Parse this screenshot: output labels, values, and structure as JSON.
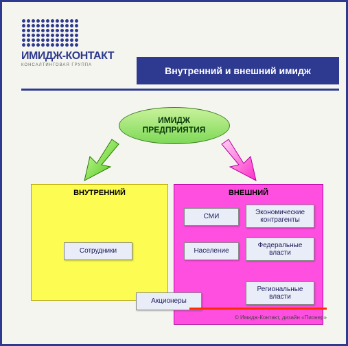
{
  "logo": {
    "name": "ИМИДЖ-КОНТАКТ",
    "sub": "КОНСАЛТИНГОВАЯ ГРУППА",
    "dot_color": "#2e3a8f",
    "rows": 6,
    "cols": 12
  },
  "title": "Внутренний и внешний имидж",
  "colors": {
    "brand": "#2e3a8f",
    "inner_bg": "#fcfc52",
    "outer_bg": "#ff4fe0",
    "node_bg": "#e9edf7",
    "accent_line": "#ff2a00"
  },
  "diagram": {
    "root": {
      "line1": "ИМИДЖ",
      "line2": "ПРЕДПРИЯТИЯ"
    },
    "inner": {
      "title": "ВНУТРЕННИЙ"
    },
    "outer": {
      "title": "ВНЕШНИЙ"
    },
    "nodes": {
      "employees": "Сотрудники",
      "shareholders": "Акционеры",
      "media": "СМИ",
      "econ": "Экономические контрагенты",
      "population": "Население",
      "fed": "Федеральные власти",
      "reg": "Региональные власти"
    }
  },
  "credit": "© Имидж-Контакт, дизайн «Пионер»"
}
